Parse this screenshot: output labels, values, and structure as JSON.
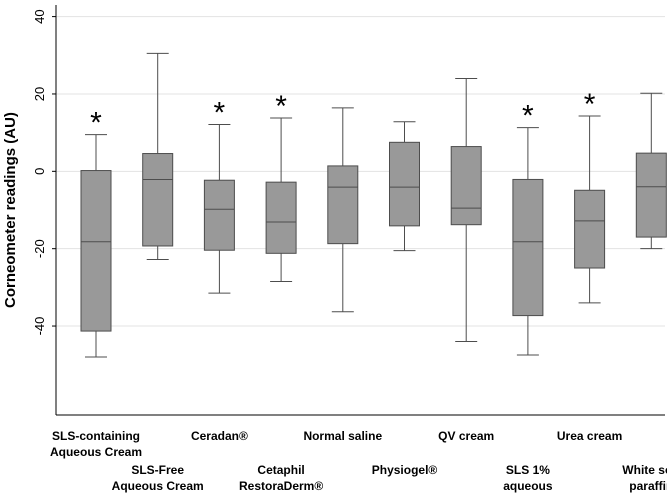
{
  "chart_data": {
    "type": "box",
    "title": "",
    "xlabel": "",
    "ylabel": "Corneometer readings (AU)",
    "ylim": [
      -63,
      43
    ],
    "yticks": [
      40,
      20,
      0,
      -20,
      -40
    ],
    "ytick_labels": [
      "40",
      "20",
      "0",
      "-20",
      "-40"
    ],
    "grid": true,
    "significance_marker": "*",
    "colors": {
      "box_fill": "#999999",
      "stroke": "#4d4d4d",
      "grid": "#e3e3e3",
      "axis": "#000000"
    },
    "categories": [
      {
        "label_lines": [
          "SLS-containing",
          "Aqueous Cream"
        ],
        "whisker_low": -48,
        "q1": -41.3,
        "median": -18.2,
        "q3": 0.2,
        "whisker_high": 9.5,
        "significant": true
      },
      {
        "label_lines": [
          "SLS-Free",
          "Aqueous Cream"
        ],
        "whisker_low": -22.8,
        "q1": -19.3,
        "median": -2.1,
        "q3": 4.6,
        "whisker_high": 30.5,
        "significant": false
      },
      {
        "label_lines": [
          "Ceradan®"
        ],
        "whisker_low": -31.5,
        "q1": -20.4,
        "median": -9.8,
        "q3": -2.3,
        "whisker_high": 12.1,
        "significant": true
      },
      {
        "label_lines": [
          "Cetaphil",
          "RestoraDerm®"
        ],
        "whisker_low": -28.5,
        "q1": -21.2,
        "median": -13.1,
        "q3": -2.8,
        "whisker_high": 13.8,
        "significant": true
      },
      {
        "label_lines": [
          "Normal saline"
        ],
        "whisker_low": -36.3,
        "q1": -18.7,
        "median": -4.1,
        "q3": 1.4,
        "whisker_high": 16.4,
        "significant": false
      },
      {
        "label_lines": [
          "Physiogel®"
        ],
        "whisker_low": -20.5,
        "q1": -14.1,
        "median": -4.1,
        "q3": 7.5,
        "whisker_high": 12.8,
        "significant": false
      },
      {
        "label_lines": [
          "QV cream"
        ],
        "whisker_low": -44.0,
        "q1": -13.8,
        "median": -9.5,
        "q3": 6.4,
        "whisker_high": 24.0,
        "significant": false
      },
      {
        "label_lines": [
          "SLS 1%",
          "aqueous"
        ],
        "whisker_low": -47.5,
        "q1": -37.3,
        "median": -18.2,
        "q3": -2.1,
        "whisker_high": 11.3,
        "significant": true
      },
      {
        "label_lines": [
          "Urea cream"
        ],
        "whisker_low": -34.0,
        "q1": -25.0,
        "median": -12.8,
        "q3": -4.9,
        "whisker_high": 14.3,
        "significant": true
      },
      {
        "label_lines": [
          "White soft",
          "paraffin"
        ],
        "whisker_low": -20.0,
        "q1": -17.0,
        "median": -4.0,
        "q3": 4.7,
        "whisker_high": 20.2,
        "significant": false
      }
    ]
  }
}
